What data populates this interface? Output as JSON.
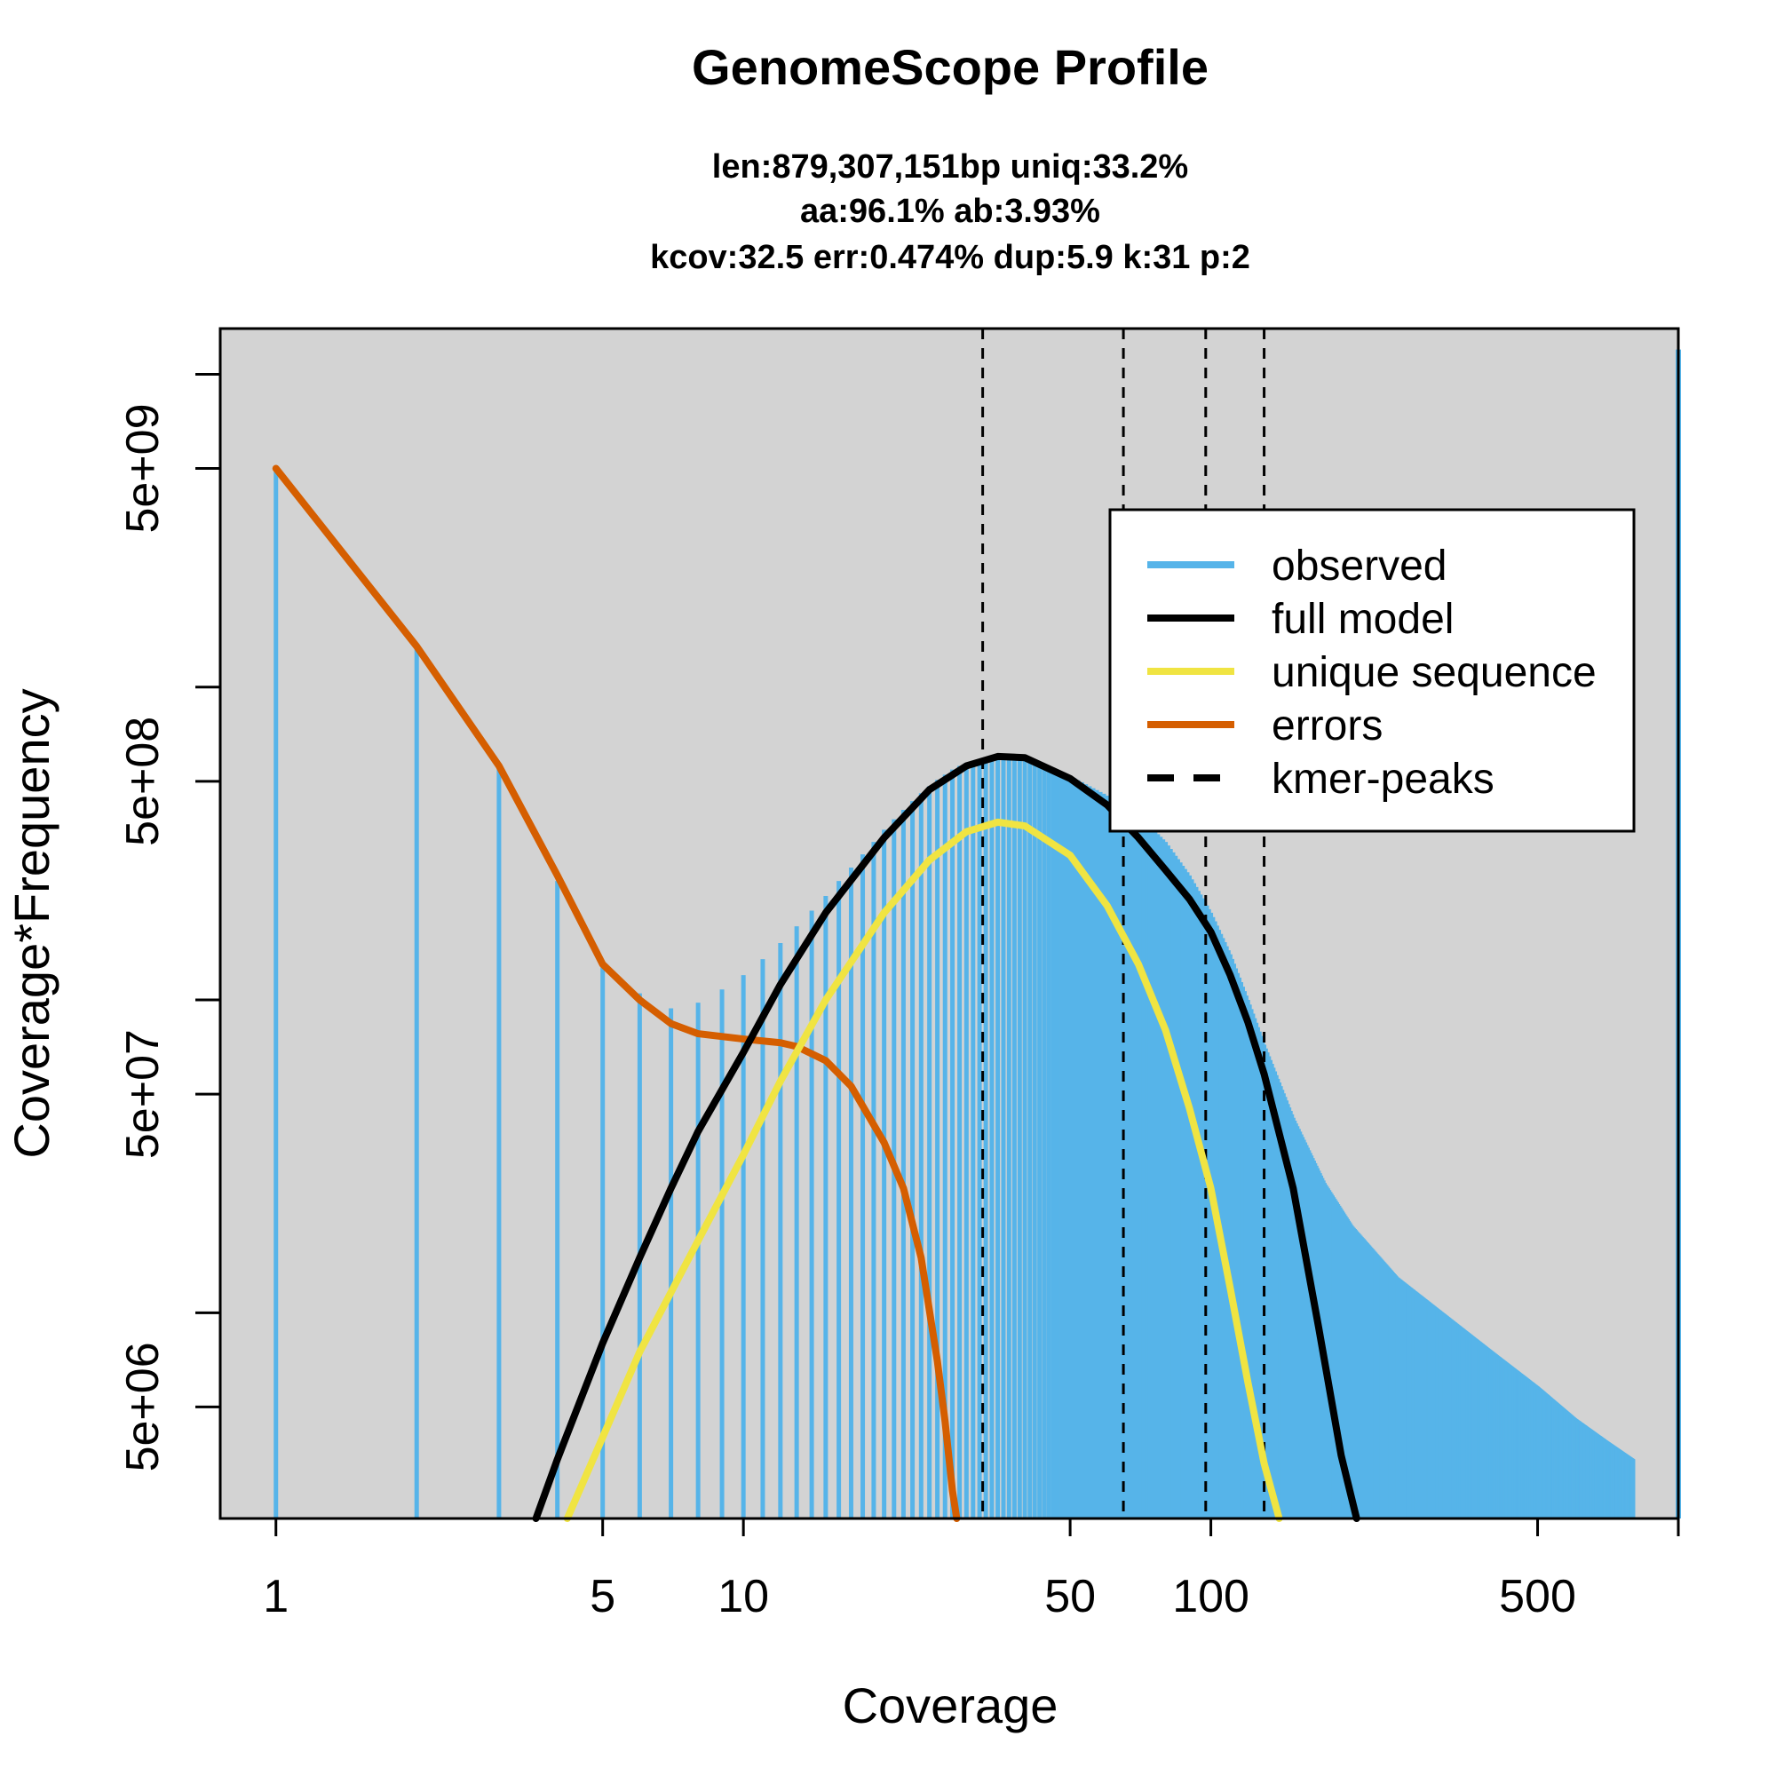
{
  "chart_data": {
    "type": "line",
    "title": "GenomeScope Profile",
    "subtitle_lines": [
      "len:879,307,151bp uniq:33.2%",
      "aa:96.1% ab:3.93%",
      "kcov:32.5 err:0.474%  dup:5.9  k:31 p:2"
    ],
    "xlabel": "Coverage",
    "ylabel": "Coverage*Frequency",
    "x_scale": "log",
    "y_scale": "log",
    "xlim": [
      0.76,
      1000
    ],
    "ylim": [
      2200000,
      14000000000
    ],
    "x_ticks": [
      1,
      5,
      10,
      50,
      100,
      500
    ],
    "x_tick_labels": [
      "1",
      "5",
      "10",
      "50",
      "100",
      "500"
    ],
    "y_ticks_major": [
      5000000,
      50000000,
      500000000,
      5000000000
    ],
    "y_tick_labels": [
      "5e+06",
      "5e+07",
      "5e+08",
      "5e+09"
    ],
    "y_ticks_minor": [
      1000000,
      10000000,
      100000000,
      1000000000,
      10000000000
    ],
    "background": "#d3d3d3",
    "legend": {
      "position": "top-right",
      "entries": [
        {
          "label": "observed",
          "color": "#56b4e9",
          "style": "solid"
        },
        {
          "label": "full model",
          "color": "#000000",
          "style": "solid"
        },
        {
          "label": "unique sequence",
          "color": "#f0e442",
          "style": "solid"
        },
        {
          "label": "errors",
          "color": "#d55e00",
          "style": "solid"
        },
        {
          "label": "kmer-peaks",
          "color": "#000000",
          "style": "dashed"
        }
      ]
    },
    "kmer_peaks": [
      32.5,
      65,
      97.5,
      130
    ],
    "observed": {
      "color": "#56b4e9",
      "points": [
        [
          1,
          5000000000
        ],
        [
          2,
          1350000000
        ],
        [
          3,
          550000000
        ],
        [
          4,
          240000000
        ],
        [
          5,
          130000000
        ],
        [
          6,
          105000000
        ],
        [
          7,
          94000000
        ],
        [
          8,
          98000000
        ],
        [
          9,
          108000000
        ],
        [
          10,
          120000000
        ],
        [
          11,
          135000000
        ],
        [
          12,
          152000000
        ],
        [
          13,
          172000000
        ],
        [
          14,
          193000000
        ],
        [
          15,
          215000000
        ],
        [
          16,
          240000000
        ],
        [
          17,
          265000000
        ],
        [
          18,
          292000000
        ],
        [
          19,
          320000000
        ],
        [
          20,
          350000000
        ],
        [
          21,
          378000000
        ],
        [
          22,
          405000000
        ],
        [
          23,
          432000000
        ],
        [
          24,
          458000000
        ],
        [
          25,
          482000000
        ],
        [
          26,
          505000000
        ],
        [
          27,
          525000000
        ],
        [
          28,
          545000000
        ],
        [
          29,
          560000000
        ],
        [
          30,
          573000000
        ],
        [
          32,
          590000000
        ],
        [
          36,
          600000000
        ],
        [
          40,
          585000000
        ],
        [
          50,
          520000000
        ],
        [
          60,
          450000000
        ],
        [
          70,
          390000000
        ],
        [
          80,
          320000000
        ],
        [
          90,
          250000000
        ],
        [
          100,
          190000000
        ],
        [
          110,
          140000000
        ],
        [
          120,
          100000000
        ],
        [
          130,
          72000000
        ],
        [
          150,
          42000000
        ],
        [
          175,
          26000000
        ],
        [
          200,
          19000000
        ],
        [
          250,
          13000000
        ],
        [
          300,
          10500000
        ],
        [
          400,
          7500000
        ],
        [
          500,
          5800000
        ],
        [
          600,
          4600000
        ],
        [
          700,
          3900000
        ],
        [
          800,
          3400000
        ],
        [
          1000,
          12000000000
        ]
      ]
    },
    "full_model": {
      "color": "#000000",
      "points": [
        [
          3.6,
          2200000
        ],
        [
          4,
          3400000
        ],
        [
          5,
          8000000
        ],
        [
          6,
          15000000
        ],
        [
          7,
          25000000
        ],
        [
          8,
          38000000
        ],
        [
          10,
          68000000
        ],
        [
          12,
          112000000
        ],
        [
          15,
          190000000
        ],
        [
          20,
          330000000
        ],
        [
          25,
          470000000
        ],
        [
          30,
          560000000
        ],
        [
          35,
          600000000
        ],
        [
          40,
          595000000
        ],
        [
          50,
          510000000
        ],
        [
          60,
          420000000
        ],
        [
          70,
          330000000
        ],
        [
          80,
          260000000
        ],
        [
          90,
          210000000
        ],
        [
          100,
          165000000
        ],
        [
          110,
          120000000
        ],
        [
          120,
          85000000
        ],
        [
          130,
          58000000
        ],
        [
          150,
          25000000
        ],
        [
          170,
          9000000
        ],
        [
          190,
          3500000
        ],
        [
          205,
          2200000
        ]
      ]
    },
    "unique_sequence": {
      "color": "#f0e442",
      "points": [
        [
          4.2,
          2200000
        ],
        [
          5,
          4000000
        ],
        [
          6,
          7500000
        ],
        [
          8,
          17000000
        ],
        [
          10,
          32000000
        ],
        [
          12,
          55000000
        ],
        [
          15,
          100000000
        ],
        [
          20,
          190000000
        ],
        [
          25,
          280000000
        ],
        [
          30,
          345000000
        ],
        [
          35,
          370000000
        ],
        [
          40,
          360000000
        ],
        [
          50,
          290000000
        ],
        [
          60,
          200000000
        ],
        [
          70,
          130000000
        ],
        [
          80,
          80000000
        ],
        [
          90,
          45000000
        ],
        [
          100,
          25000000
        ],
        [
          110,
          12000000
        ],
        [
          120,
          6000000
        ],
        [
          130,
          3300000
        ],
        [
          140,
          2200000
        ]
      ]
    },
    "errors": {
      "color": "#d55e00",
      "points": [
        [
          1,
          5000000000
        ],
        [
          2,
          1350000000
        ],
        [
          3,
          560000000
        ],
        [
          4,
          250000000
        ],
        [
          5,
          130000000
        ],
        [
          6,
          100000000
        ],
        [
          7,
          84000000
        ],
        [
          8,
          78000000
        ],
        [
          10,
          75000000
        ],
        [
          12,
          73000000
        ],
        [
          13,
          71000000
        ],
        [
          15,
          64000000
        ],
        [
          17,
          53000000
        ],
        [
          20,
          35000000
        ],
        [
          22,
          25000000
        ],
        [
          24,
          15000000
        ],
        [
          26,
          7000000
        ],
        [
          27,
          4500000
        ],
        [
          28,
          2700000
        ],
        [
          28.6,
          2200000
        ]
      ]
    }
  }
}
